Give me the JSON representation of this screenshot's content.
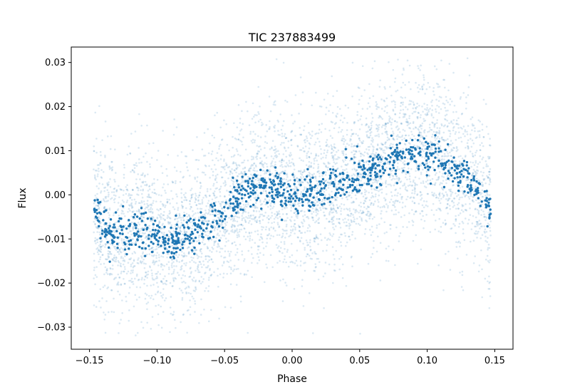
{
  "chart_data": {
    "type": "scatter",
    "title": "TIC 237883499",
    "xlabel": "Phase",
    "ylabel": "Flux",
    "xlim": [
      -0.1635,
      0.1635
    ],
    "ylim": [
      -0.035,
      0.0335
    ],
    "xticks": [
      -0.15,
      -0.1,
      -0.05,
      0.0,
      0.05,
      0.1,
      0.15
    ],
    "xtick_labels": [
      "−0.15",
      "−0.10",
      "−0.05",
      "0.00",
      "0.05",
      "0.10",
      "0.15"
    ],
    "yticks": [
      0.03,
      0.02,
      0.01,
      0.0,
      -0.01,
      -0.02,
      -0.03
    ],
    "ytick_labels": [
      "0.03",
      "0.02",
      "0.01",
      "0.00",
      "−0.01",
      "−0.02",
      "−0.03"
    ],
    "grid": false,
    "colors": {
      "point": "#1f77b4"
    },
    "series": [
      {
        "style": "faint",
        "description_of_trend": "raw flux points, broad scatter (about ±0.02) around the binned trend",
        "x_range": [
          -0.147,
          0.147
        ],
        "count": 5000,
        "scatter_sd": 0.009
      },
      {
        "style": "bold",
        "x_range": [
          -0.147,
          0.147
        ],
        "count": 900,
        "scatter_sd": 0.0022,
        "trend_x": [
          -0.147,
          -0.14,
          -0.13,
          -0.12,
          -0.11,
          -0.1,
          -0.09,
          -0.08,
          -0.07,
          -0.06,
          -0.05,
          -0.04,
          -0.03,
          -0.02,
          -0.01,
          0.0,
          0.01,
          0.02,
          0.03,
          0.04,
          0.05,
          0.06,
          0.07,
          0.08,
          0.09,
          0.1,
          0.11,
          0.12,
          0.13,
          0.14,
          0.147
        ],
        "trend_y": [
          -0.003,
          -0.007,
          -0.009,
          -0.0085,
          -0.008,
          -0.0095,
          -0.0105,
          -0.0095,
          -0.008,
          -0.006,
          -0.004,
          -0.001,
          0.001,
          0.002,
          0.001,
          0.0,
          0.0005,
          0.001,
          0.002,
          0.0035,
          0.0045,
          0.006,
          0.0075,
          0.009,
          0.0095,
          0.0095,
          0.008,
          0.006,
          0.004,
          0.001,
          -0.004
        ]
      }
    ]
  }
}
